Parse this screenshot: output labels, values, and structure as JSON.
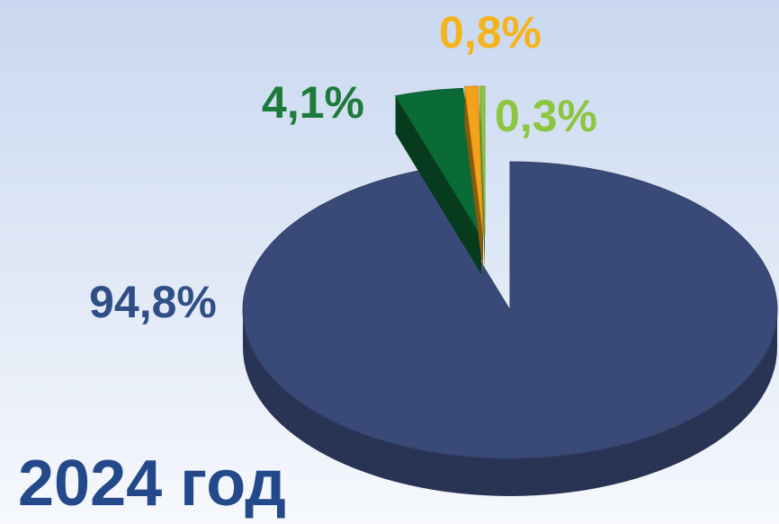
{
  "chart_data": {
    "type": "pie3d",
    "title": "2024 год",
    "values": [
      94.8,
      4.1,
      0.8,
      0.3
    ],
    "value_labels": [
      "94,8%",
      "4,1%",
      "0,8%",
      "0,3%"
    ],
    "colors": [
      "#3a4a78",
      "#0b6b36",
      "#f4a21a",
      "#8cc63f"
    ],
    "label_colors": [
      "#2f4f86",
      "#1d7a3a",
      "#f5b41e",
      "#8cc63f"
    ]
  }
}
